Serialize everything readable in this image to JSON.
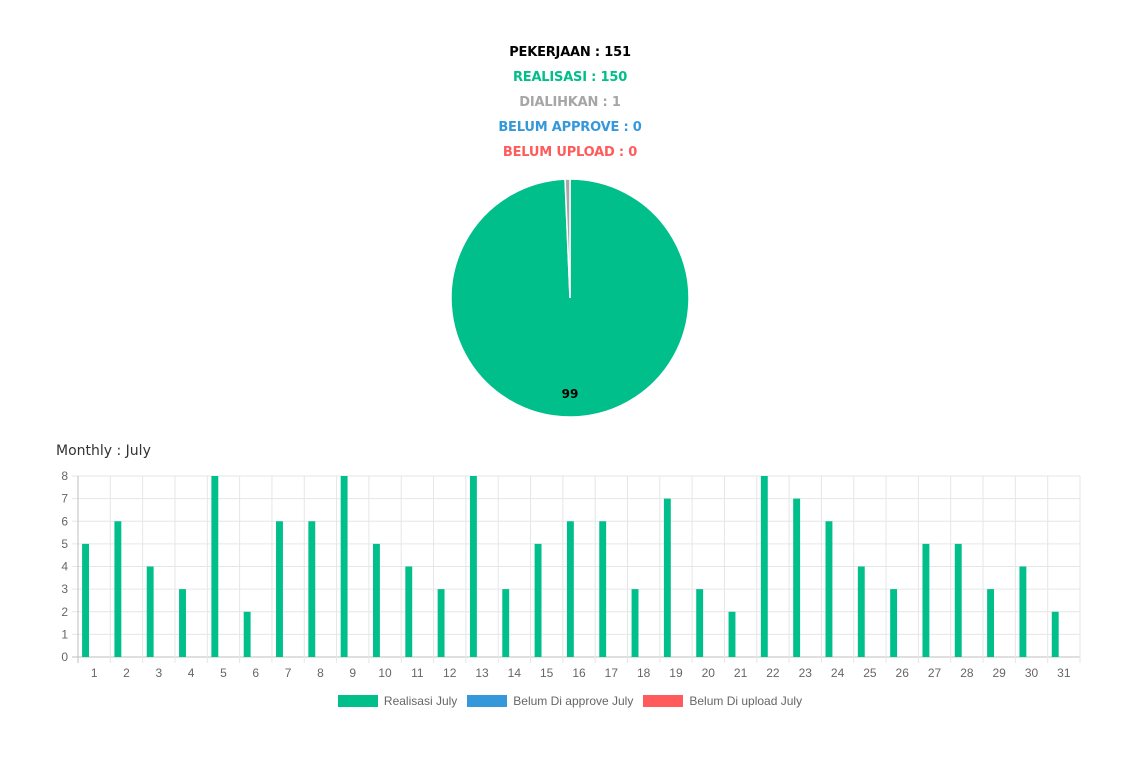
{
  "summary": {
    "pekerjaan": "PEKERJAAN : 151",
    "realisasi": "REALISASI : 150",
    "dialihkan": "DIALIHKAN : 1",
    "belum_approve": "BELUM APPROVE : 0",
    "belum_upload": "BELUM UPLOAD : 0"
  },
  "colors": {
    "black": "#000000",
    "green": "#00bf8a",
    "gray": "#a6a6a6",
    "blue": "#3498db",
    "red": "#ff5b5b",
    "grid": "#e6e6e6",
    "tick": "#666666"
  },
  "monthly": {
    "title": "Monthly : July"
  },
  "chart_data": [
    {
      "type": "pie",
      "slices": [
        {
          "label": "Realisasi",
          "value": 150,
          "color": "#00bf8a"
        },
        {
          "label": "Dialihkan",
          "value": 1,
          "color": "#a6a6a6"
        }
      ],
      "data_label": "99"
    },
    {
      "type": "bar",
      "categories": [
        "1",
        "2",
        "3",
        "4",
        "5",
        "6",
        "7",
        "8",
        "9",
        "10",
        "11",
        "12",
        "13",
        "14",
        "15",
        "16",
        "17",
        "18",
        "19",
        "20",
        "21",
        "22",
        "23",
        "24",
        "25",
        "26",
        "27",
        "28",
        "29",
        "30",
        "31"
      ],
      "series": [
        {
          "name": "Realisasi July",
          "color": "#00bf8a",
          "values": [
            5,
            6,
            4,
            3,
            8,
            2,
            6,
            6,
            8,
            5,
            4,
            3,
            8,
            3,
            5,
            6,
            6,
            3,
            7,
            3,
            2,
            8,
            7,
            6,
            4,
            3,
            5,
            5,
            3,
            4,
            2
          ]
        },
        {
          "name": "Belum Di approve July",
          "color": "#3498db",
          "values": [
            0,
            0,
            0,
            0,
            0,
            0,
            0,
            0,
            0,
            0,
            0,
            0,
            0,
            0,
            0,
            0,
            0,
            0,
            0,
            0,
            0,
            0,
            0,
            0,
            0,
            0,
            0,
            0,
            0,
            0,
            0
          ]
        },
        {
          "name": "Belum Di upload July",
          "color": "#ff5b5b",
          "values": [
            0,
            0,
            0,
            0,
            0,
            0,
            0,
            0,
            0,
            0,
            0,
            0,
            0,
            0,
            0,
            0,
            0,
            0,
            0,
            0,
            0,
            0,
            0,
            0,
            0,
            0,
            0,
            0,
            0,
            0,
            0
          ]
        }
      ],
      "yticks": [
        "0",
        "1",
        "2",
        "3",
        "4",
        "5",
        "6",
        "7",
        "8"
      ],
      "ylim": [
        0,
        8
      ],
      "grid": true,
      "legend": "bottom"
    }
  ]
}
